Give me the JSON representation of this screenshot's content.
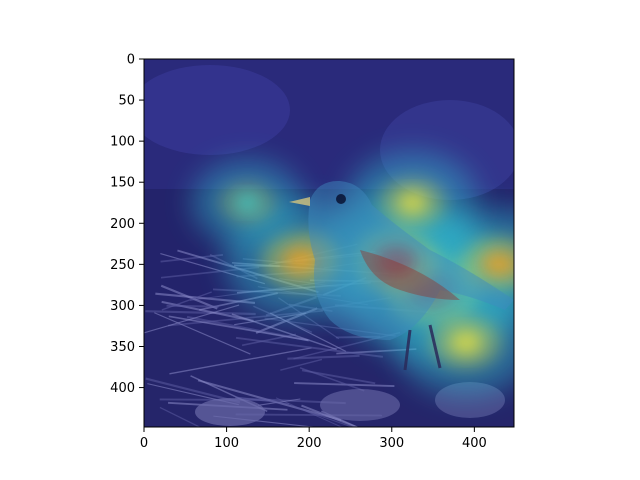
{
  "chart_data": {
    "type": "heatmap",
    "title": "",
    "xlabel": "",
    "ylabel": "",
    "xlim": [
      0,
      448
    ],
    "ylim": [
      448,
      0
    ],
    "x_ticks": [
      0,
      100,
      200,
      300,
      400
    ],
    "y_ticks": [
      0,
      50,
      100,
      150,
      200,
      250,
      300,
      350,
      400
    ],
    "x_tick_labels": [
      "0",
      "100",
      "200",
      "300",
      "400"
    ],
    "y_tick_labels": [
      "0",
      "50",
      "100",
      "150",
      "200",
      "250",
      "300",
      "350",
      "400"
    ],
    "grid": false,
    "colormap": "jet",
    "hotspots": [
      {
        "x": 350,
        "y": 280,
        "intensity": 1.0
      },
      {
        "x": 305,
        "y": 245,
        "intensity": 0.9
      },
      {
        "x": 190,
        "y": 245,
        "intensity": 0.8
      },
      {
        "x": 430,
        "y": 250,
        "intensity": 0.75
      },
      {
        "x": 390,
        "y": 345,
        "intensity": 0.7
      },
      {
        "x": 325,
        "y": 175,
        "intensity": 0.65
      },
      {
        "x": 125,
        "y": 175,
        "intensity": 0.5
      }
    ],
    "background_colors": {
      "overlay_base": "#1e1e8c",
      "ground": "#2a2a6e",
      "bird_body": "#4a7ab8"
    }
  }
}
